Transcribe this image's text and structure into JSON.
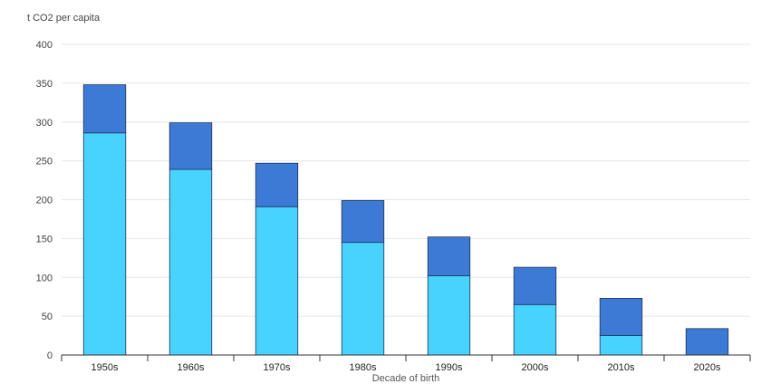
{
  "chart_data": {
    "type": "bar",
    "stacked": true,
    "title": "",
    "ylabel": "t CO2 per capita",
    "xlabel": "Decade of birth",
    "categories": [
      "1950s",
      "1960s",
      "1970s",
      "1980s",
      "1990s",
      "2000s",
      "2010s",
      "2020s"
    ],
    "series": [
      {
        "values": [
          286,
          239,
          191,
          145,
          102,
          65,
          25,
          0
        ],
        "color": "#48d3ff"
      },
      {
        "values": [
          62,
          60,
          56,
          54,
          50,
          48,
          48,
          34
        ],
        "color": "#3d7ad6"
      }
    ],
    "yticks": [
      0,
      50,
      100,
      150,
      200,
      250,
      300,
      350,
      400
    ],
    "ylim": [
      0,
      400
    ],
    "grid": true,
    "legend": "none"
  }
}
